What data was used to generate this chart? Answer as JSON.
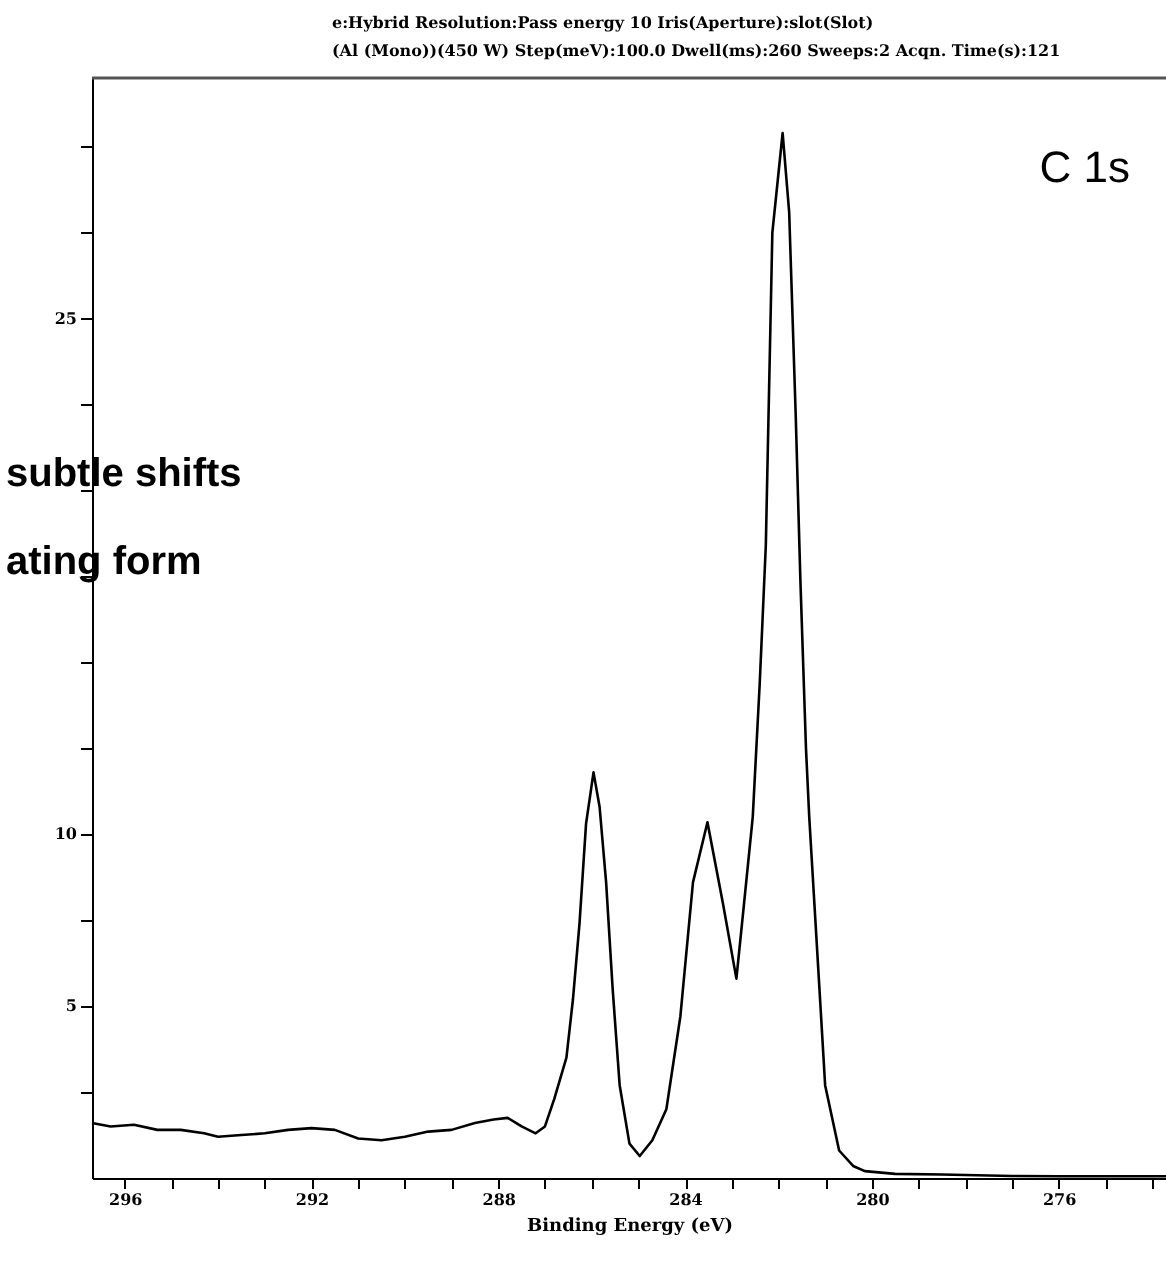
{
  "chart_data": {
    "type": "line",
    "title": "e:Hybrid   Resolution:Pass energy 10    Iris(Aperture):slot(Slot)",
    "subtitle": "(Al (Mono))(450 W)   Step(meV):100.0    Dwell(ms):260        Sweeps:2        Acqn. Time(s):121",
    "xlabel": "Binding Energy (eV)",
    "annotations": [
      "C 1s",
      "subtle shifts",
      "ating form"
    ],
    "x": [
      296.7,
      296.3,
      295.8,
      295.3,
      294.8,
      294.3,
      294.0,
      293.5,
      293.0,
      292.5,
      292.0,
      291.5,
      291.0,
      290.5,
      290.0,
      289.5,
      289.0,
      288.5,
      288.1,
      287.8,
      287.5,
      287.2,
      287.0,
      286.8,
      286.54,
      286.4,
      286.26,
      286.12,
      285.96,
      285.83,
      285.69,
      285.55,
      285.4,
      285.19,
      284.97,
      284.7,
      284.4,
      284.1,
      283.83,
      283.52,
      283.19,
      282.9,
      282.75,
      282.55,
      282.4,
      282.27,
      282.13,
      281.91,
      281.77,
      281.63,
      281.53,
      281.41,
      281.34,
      281.13,
      281.0,
      280.7,
      280.4,
      280.15,
      279.5,
      278.5,
      277.0,
      276.0,
      274.0,
      273.7
    ],
    "series": [
      {
        "color": "#000000",
        "values": [
          1.6,
          1.5,
          1.55,
          1.4,
          1.4,
          1.3,
          1.2,
          1.25,
          1.3,
          1.4,
          1.45,
          1.4,
          1.15,
          1.1,
          1.2,
          1.35,
          1.4,
          1.6,
          1.7,
          1.75,
          1.5,
          1.3,
          1.5,
          2.3,
          3.5,
          5.2,
          7.4,
          10.3,
          11.8,
          10.8,
          8.6,
          5.5,
          2.7,
          1.0,
          0.64,
          1.1,
          2.0,
          4.7,
          8.6,
          10.35,
          8.0,
          5.8,
          7.8,
          10.5,
          14.4,
          18.4,
          27.5,
          30.4,
          28.1,
          22.2,
          17.4,
          12.5,
          10.5,
          5.7,
          2.7,
          0.8,
          0.35,
          0.2,
          0.12,
          0.1,
          0.06,
          0.05,
          0.05,
          0.05
        ]
      }
    ],
    "xlim": [
      296.7,
      273.7
    ],
    "xticks": [
      296,
      {
        "value": 295,
        "label": null
      },
      {
        "value": 294,
        "label": null
      },
      {
        "value": 293,
        "label": null
      },
      292,
      {
        "value": 291,
        "label": null
      },
      {
        "value": 290,
        "label": null
      },
      {
        "value": 289,
        "label": null
      },
      288,
      {
        "value": 287,
        "label": null
      },
      {
        "value": 286,
        "label": null
      },
      {
        "value": 285,
        "label": null
      },
      284,
      {
        "value": 283,
        "label": null
      },
      {
        "value": 282,
        "label": null
      },
      {
        "value": 281,
        "label": null
      },
      280,
      {
        "value": 279,
        "label": null
      },
      {
        "value": 278,
        "label": null
      },
      {
        "value": 277,
        "label": null
      },
      276,
      {
        "value": 275,
        "label": null
      },
      {
        "value": 274,
        "label": null
      }
    ],
    "ylim": [
      0,
      32
    ],
    "yticks": [
      {
        "value": 2.5,
        "label": null
      },
      5,
      {
        "value": 7.5,
        "label": null
      },
      10,
      {
        "value": 12.5,
        "label": null
      },
      {
        "value": 15,
        "label": null
      },
      {
        "value": 17.5,
        "label": null
      },
      {
        "value": 20,
        "label": null
      },
      {
        "value": 22.5,
        "label": null
      },
      25,
      {
        "value": 27.5,
        "label": null
      },
      {
        "value": 30,
        "label": null
      }
    ],
    "grid": false,
    "legend": false,
    "marker": "none",
    "line_style": "solid"
  }
}
